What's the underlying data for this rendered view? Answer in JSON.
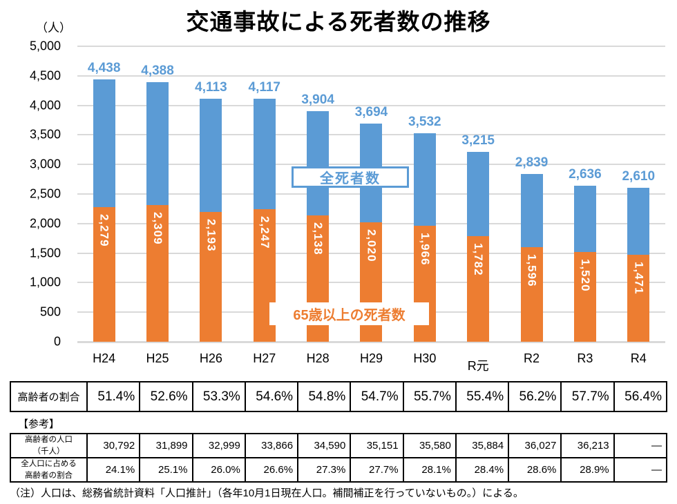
{
  "title": "交通事故による死者数の推移",
  "unit_label": "（人）",
  "chart_data": {
    "type": "bar",
    "stacked": true,
    "title": "交通事故による死者数の推移",
    "ylabel": "（人）",
    "ylim": [
      0,
      5000
    ],
    "ytick_step": 500,
    "grid": true,
    "categories": [
      "H24",
      "H25",
      "H26",
      "H27",
      "H28",
      "H29",
      "H30",
      "R元",
      "R2",
      "R3",
      "R4"
    ],
    "series": [
      {
        "name": "全死者数",
        "color": "#5B9BD5",
        "values": [
          4438,
          4388,
          4113,
          4117,
          3904,
          3694,
          3532,
          3215,
          2839,
          2636,
          2610
        ]
      },
      {
        "name": "65歳以上の死者数",
        "color": "#ED7D31",
        "values": [
          2279,
          2309,
          2193,
          2247,
          2138,
          2020,
          1966,
          1782,
          1596,
          1520,
          1471
        ]
      }
    ]
  },
  "callouts": {
    "total": "全死者数",
    "elderly": "65歳以上の死者数"
  },
  "ratio_table": {
    "header": "高齢者の割合",
    "values": [
      "51.4%",
      "52.6%",
      "53.3%",
      "54.6%",
      "54.8%",
      "54.7%",
      "55.7%",
      "55.4%",
      "56.2%",
      "57.7%",
      "56.4%"
    ]
  },
  "reference_label": "【参考】",
  "reference_table": {
    "rows": [
      {
        "header_lines": [
          "高齢者の人口",
          "（千人）"
        ],
        "values": [
          "30,792",
          "31,899",
          "32,999",
          "33,866",
          "34,590",
          "35,151",
          "35,580",
          "35,884",
          "36,027",
          "36,213",
          "―"
        ]
      },
      {
        "header_lines": [
          "全人口に占める",
          "高齢者の割合"
        ],
        "values": [
          "24.1%",
          "25.1%",
          "26.0%",
          "26.6%",
          "27.3%",
          "27.7%",
          "28.1%",
          "28.4%",
          "28.6%",
          "28.9%",
          "―"
        ]
      }
    ]
  },
  "note": "（注）人口は、総務省統計資料「人口推計」（各年10月1日現在人口。補間補正を行っていないもの。）による。",
  "colors": {
    "total_bar": "#5B9BD5",
    "elderly_bar": "#ED7D31",
    "gridline": "#D9D9D9",
    "value_label_blue": "#5B9BD5",
    "value_label_white": "#FFFFFF"
  }
}
